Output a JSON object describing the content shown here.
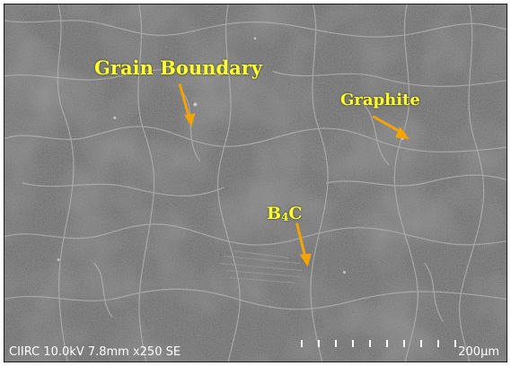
{
  "annotations": {
    "grain_boundary": "Grain Boundary",
    "graphite": "Graphite",
    "b4c_main": "B",
    "b4c_sub": "4",
    "b4c_end": "C"
  },
  "info_bar": {
    "text": "CIIRC 10.0kV 7.8mm x250 SE",
    "scale_label": "200µm"
  },
  "colors": {
    "annotation_text": "#ffff33",
    "arrow": "#f5a300",
    "background": "#5c5c5c",
    "boundary": "#b8b8b8"
  }
}
